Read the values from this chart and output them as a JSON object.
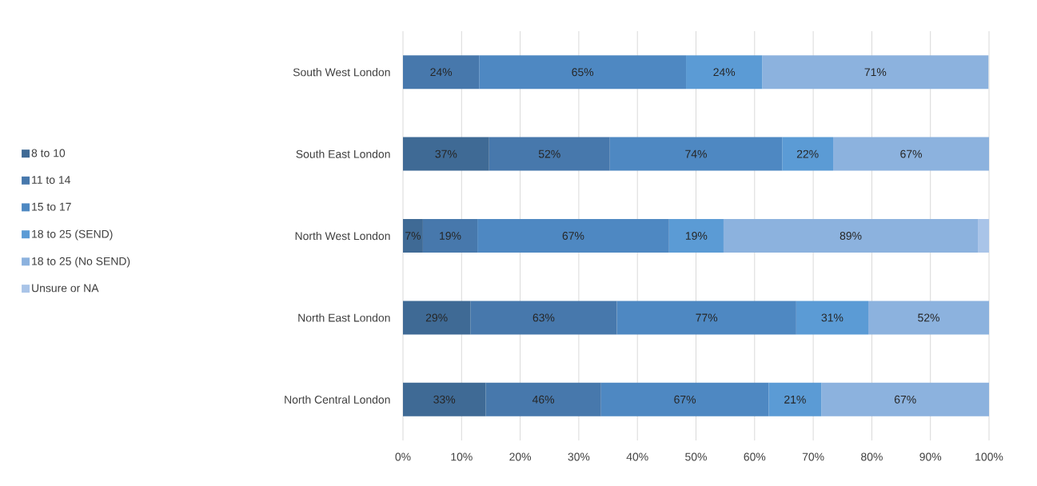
{
  "chart_data": {
    "type": "bar",
    "orientation": "horizontal",
    "stacked": true,
    "categories": [
      "South West London",
      "South East London",
      "North West London",
      "North East London",
      "North Central London"
    ],
    "series": [
      {
        "name": "8 to 10",
        "color": "#3f6a95",
        "values": [
          null,
          14.7,
          3.4,
          11.5,
          14.1
        ]
      },
      {
        "name": "11 to 14",
        "color": "#4778ac",
        "values": [
          13.0,
          20.6,
          9.3,
          25.0,
          19.7
        ]
      },
      {
        "name": "15 to 17",
        "color": "#4e88c2",
        "values": [
          35.3,
          29.4,
          32.7,
          30.6,
          28.6
        ]
      },
      {
        "name": "18 to 25 (SEND)",
        "color": "#5b9bd5",
        "values": [
          13.0,
          8.7,
          9.3,
          12.3,
          9.0
        ]
      },
      {
        "name": "18 to 25 (No SEND)",
        "color": "#8cb2de",
        "values": [
          38.6,
          26.6,
          43.4,
          20.6,
          28.6
        ]
      },
      {
        "name": "Unsure or NA",
        "color": "#a9c4e8",
        "values": [
          null,
          null,
          2.0,
          null,
          null
        ]
      }
    ],
    "annotations": [
      "24%",
      "65%",
      "24%",
      "71%",
      "37%",
      "52%",
      "74%",
      "22%",
      "67%",
      "7%",
      "19%",
      "67%",
      "19%",
      "89%",
      "29%",
      "63%",
      "77%",
      "31%",
      "52%",
      "33%",
      "46%",
      "67%",
      "21%",
      "67%"
    ],
    "xlim": [
      0,
      100
    ],
    "xticks": [
      {
        "value": 0,
        "label": "0%"
      },
      {
        "value": 10,
        "label": "10%"
      },
      {
        "value": 20,
        "label": "20%"
      },
      {
        "value": 30,
        "label": "30%"
      },
      {
        "value": 40,
        "label": "40%"
      },
      {
        "value": 50,
        "label": "50%"
      },
      {
        "value": 60,
        "label": "60%"
      },
      {
        "value": 70,
        "label": "70%"
      },
      {
        "value": 80,
        "label": "80%"
      },
      {
        "value": 90,
        "label": "90%"
      },
      {
        "value": 100,
        "label": "100%"
      }
    ],
    "grid": "x",
    "legend": "left"
  }
}
